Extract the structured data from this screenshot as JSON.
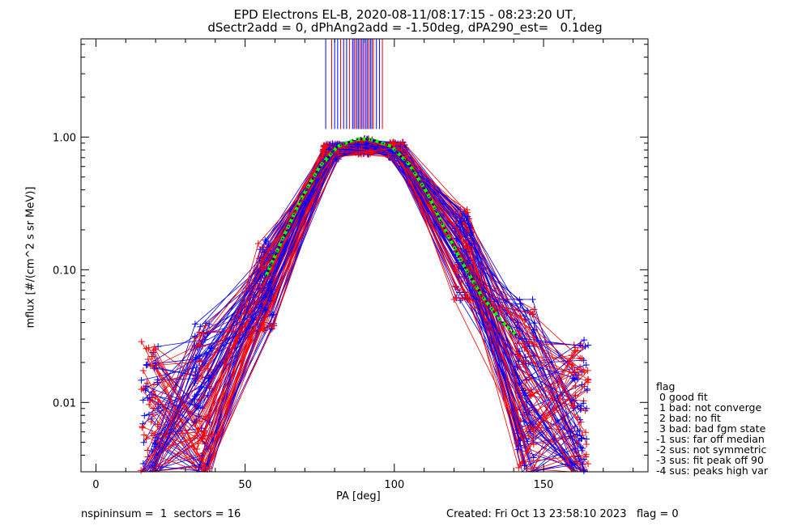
{
  "title_line1": "EPD Electrons EL-B, 2020-08-11/08:17:15 - 08:23:20 UT,",
  "title_line2": "dSectr2add = 0, dPhAng2add = -1.50deg, dPA290_est=   0.1deg",
  "footer": {
    "left": "nspininsum =  1  sectors = 16",
    "right": "Created: Fri Oct 13 23:58:10 2023   flag = 0"
  },
  "legend": {
    "title": "flag",
    "items": [
      " 0 good fit",
      " 1 bad: not converge",
      " 2 bad: no fit",
      " 3 bad: bad fgm state",
      "-1 sus: far off median",
      "-2 sus: not symmetric",
      "-3 sus: fit peak off 90",
      "-4 sus: peaks high var"
    ]
  },
  "chart_data": {
    "type": "line",
    "xlabel": "PA [deg]",
    "ylabel": "mflux [#/(cm^2 s sr MeV)]",
    "xlim": [
      -5,
      185
    ],
    "ylim": [
      0.003,
      5.5
    ],
    "yscale": "log",
    "xticks": [
      0,
      50,
      100,
      150
    ],
    "yticks": [
      0.01,
      0.1,
      1.0
    ],
    "ytick_labels": [
      "0.01",
      "0.10",
      "1.00"
    ],
    "colors": {
      "series_a": "#ff0000",
      "series_b": "#0000ff",
      "fit": "#00ff00",
      "fit_dots": "#000000"
    },
    "template_pa": [
      18,
      36,
      57,
      79,
      90,
      101,
      123,
      144,
      162
    ],
    "template_flux": [
      0.006,
      0.008,
      0.075,
      0.78,
      0.85,
      0.8,
      0.13,
      0.012,
      0.006
    ],
    "fit_curve": {
      "pa": [
        57,
        63,
        69,
        75,
        81,
        87,
        90,
        93,
        99,
        105,
        111,
        117,
        123,
        129,
        135,
        141
      ],
      "flux": [
        0.09,
        0.18,
        0.35,
        0.6,
        0.85,
        0.96,
        0.97,
        0.95,
        0.85,
        0.62,
        0.38,
        0.2,
        0.11,
        0.065,
        0.043,
        0.032
      ]
    },
    "vertical_lines_pa": [
      77,
      79,
      80,
      81,
      82,
      83,
      84,
      85,
      86,
      86.5,
      87,
      87.5,
      88,
      88.5,
      89,
      89.5,
      90,
      90.5,
      91,
      91.5,
      92,
      92.5,
      93,
      94,
      95,
      96
    ],
    "vertical_line_range": [
      1.15,
      5.5
    ]
  }
}
